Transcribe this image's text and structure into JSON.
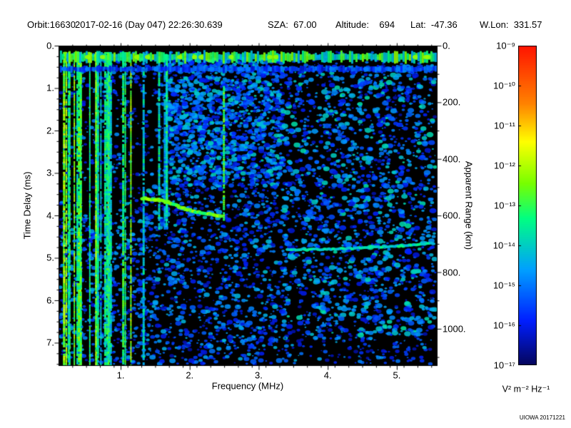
{
  "header": {
    "orbit": "Orbit:16630",
    "datetime": "2017-02-16 (Day 047) 22:26:30.639",
    "sza": "SZA:  67.00",
    "altitude": "Altitude:    694",
    "lat": "Lat:  -47.36",
    "wlon": "W.Lon:  331.57"
  },
  "footer": {
    "credit": "UIOWA 20171221"
  },
  "chart_data": {
    "type": "heatmap",
    "description": "Radar sounder ionogram: received spectral density vs frequency and time delay",
    "xlabel": "Frequency (MHz)",
    "ylabel": "Time Delay (ms)",
    "y2label": "Apparent Range (km)",
    "xlim": [
      0.1,
      5.58
    ],
    "ylim_ms": [
      0,
      7.53
    ],
    "km_per_ms": 149.9,
    "x_ticks": [
      1,
      2,
      3,
      4,
      5
    ],
    "x_tick_labels": [
      "1.",
      "2.",
      "3.",
      "4.",
      "5."
    ],
    "x_minor_step": 0.2,
    "y_ticks": [
      0,
      1,
      2,
      3,
      4,
      5,
      6,
      7
    ],
    "y_tick_labels": [
      "0.",
      "1.",
      "2.",
      "3.",
      "4.",
      "5.",
      "6.",
      "7."
    ],
    "y_minor_step": 0.25,
    "y2_ticks_km": [
      0,
      200,
      400,
      600,
      800,
      1000
    ],
    "y2_tick_labels": [
      "0.",
      "200.",
      "400.",
      "600.",
      "800.",
      "1000."
    ],
    "y2_minor_step_km": 100,
    "background": "#000000",
    "grid": false,
    "colorbar": {
      "unit": "V² m⁻² Hz⁻¹",
      "scale": "log10",
      "range_exp": [
        -17,
        -9
      ],
      "tick_labels": [
        "10⁻⁹",
        "10⁻¹⁰",
        "10⁻¹¹",
        "10⁻¹²",
        "10⁻¹³",
        "10⁻¹⁴",
        "10⁻¹⁵",
        "10⁻¹⁶",
        "10⁻¹⁷"
      ],
      "stops": [
        [
          0.0,
          [
            5,
            5,
            90
          ]
        ],
        [
          0.14,
          [
            0,
            30,
            255
          ]
        ],
        [
          0.3,
          [
            0,
            160,
            255
          ]
        ],
        [
          0.46,
          [
            0,
            255,
            130
          ]
        ],
        [
          0.57,
          [
            120,
            255,
            0
          ]
        ],
        [
          0.7,
          [
            255,
            255,
            0
          ]
        ],
        [
          0.82,
          [
            255,
            130,
            0
          ]
        ],
        [
          1.0,
          [
            255,
            20,
            0
          ]
        ]
      ]
    },
    "features": [
      {
        "type": "speckle",
        "seed": 11,
        "count": 3200,
        "f": [
          0.12,
          5.56
        ],
        "t": [
          0.15,
          7.5
        ],
        "i": [
          0.06,
          0.34
        ],
        "size": [
          1,
          3.5
        ]
      },
      {
        "type": "speckle",
        "seed": 12,
        "count": 1100,
        "f": [
          1.7,
          3.35
        ],
        "t": [
          0.3,
          3.3
        ],
        "i": [
          0.1,
          0.4
        ],
        "size": [
          1.5,
          4.5
        ]
      },
      {
        "type": "speckle",
        "seed": 13,
        "count": 950,
        "f": [
          3.35,
          5.56
        ],
        "t": [
          0.5,
          6.9
        ],
        "i": [
          0.1,
          0.42
        ],
        "size": [
          1.5,
          5
        ]
      },
      {
        "type": "speckle",
        "seed": 14,
        "count": 500,
        "f": [
          1.3,
          3.4
        ],
        "t": [
          3.3,
          7.5
        ],
        "i": [
          0.08,
          0.36
        ],
        "size": [
          1.5,
          4.5
        ]
      },
      {
        "type": "speckle",
        "seed": 15,
        "count": 260,
        "f": [
          0.12,
          1.35
        ],
        "t": [
          4.0,
          7.5
        ],
        "i": [
          0.1,
          0.35
        ],
        "size": [
          1.5,
          4
        ]
      },
      {
        "type": "vstripes",
        "seed": 21,
        "count": 28,
        "f": [
          0.12,
          1.33
        ],
        "t": [
          0.15,
          7.53
        ],
        "i": [
          0.36,
          0.6
        ]
      },
      {
        "type": "vstripes",
        "seed": 22,
        "count": 5,
        "f": [
          1.36,
          1.85
        ],
        "t": [
          0.2,
          4.3
        ],
        "i": [
          0.3,
          0.48
        ]
      },
      {
        "type": "vline",
        "seed": 23,
        "f": 2.48,
        "t": [
          0.95,
          4.1
        ],
        "i": 0.52,
        "w": 3
      },
      {
        "type": "hband",
        "seed": 24,
        "t": 0.27,
        "th": 0.2,
        "f": [
          0.12,
          5.56
        ],
        "i": [
          0.3,
          0.6
        ]
      },
      {
        "type": "hband",
        "seed": 25,
        "t": 0.55,
        "th": 0.12,
        "f": [
          0.12,
          5.56
        ],
        "i": [
          0.1,
          0.26
        ]
      },
      {
        "type": "trace",
        "seed": 26,
        "points": [
          [
            1.32,
            3.6
          ],
          [
            1.5,
            3.63
          ],
          [
            1.68,
            3.68
          ],
          [
            1.88,
            3.82
          ],
          [
            2.1,
            3.92
          ],
          [
            2.3,
            3.97
          ],
          [
            2.47,
            4.02
          ]
        ],
        "i": 0.54,
        "w": 6
      },
      {
        "type": "trace",
        "seed": 27,
        "points": [
          [
            3.42,
            4.82
          ],
          [
            3.8,
            4.8
          ],
          [
            4.2,
            4.79
          ],
          [
            4.6,
            4.76
          ],
          [
            5.0,
            4.72
          ],
          [
            5.25,
            4.7
          ],
          [
            5.53,
            4.66
          ]
        ],
        "i": 0.4,
        "w": 5
      }
    ]
  }
}
